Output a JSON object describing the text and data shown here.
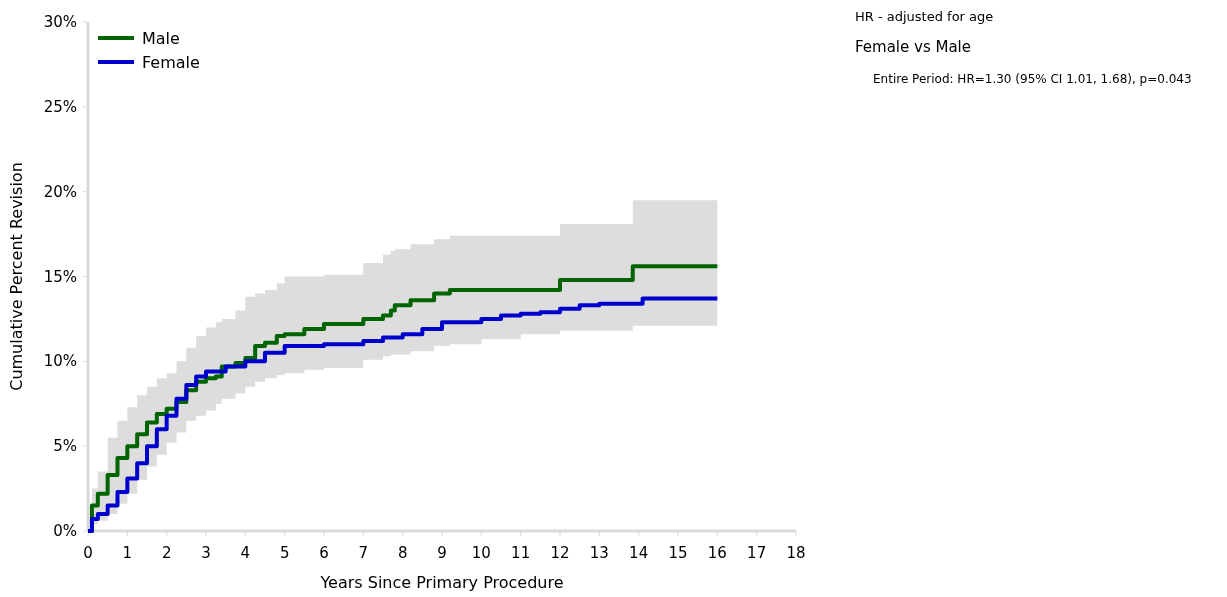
{
  "chart_data": {
    "type": "step",
    "xlabel": "Years Since Primary Procedure",
    "ylabel": "Cumulative Percent Revision",
    "xlim": [
      0,
      18
    ],
    "xticks": [
      0,
      1,
      2,
      3,
      4,
      5,
      6,
      7,
      8,
      9,
      10,
      11,
      12,
      13,
      14,
      15,
      16,
      17,
      18
    ],
    "ylim": [
      0,
      30
    ],
    "yticks": [
      {
        "value": 0,
        "label": "0%"
      },
      {
        "value": 5,
        "label": "5%"
      },
      {
        "value": 10,
        "label": "10%"
      },
      {
        "value": 15,
        "label": "15%"
      },
      {
        "value": 20,
        "label": "20%"
      },
      {
        "value": 25,
        "label": "25%"
      },
      {
        "value": 30,
        "label": "30%"
      }
    ],
    "grid": false,
    "legend": "top left",
    "marker": "none",
    "line_style": "solid",
    "annotations": [
      "HR - adjusted for age",
      "Female vs Male",
      "Entire Period: HR=1.30 (95% CI 1.01, 1.68), p=0.043"
    ],
    "series": [
      {
        "name": "Male",
        "color": "#006400",
        "x": [
          0,
          0.1,
          0.25,
          0.5,
          0.75,
          1,
          1.25,
          1.5,
          1.75,
          2,
          2.25,
          2.5,
          2.75,
          3,
          3.25,
          3.4,
          3.75,
          4,
          4.25,
          4.5,
          4.8,
          5,
          5.5,
          6,
          7,
          7.5,
          7.7,
          7.8,
          8.2,
          8.8,
          9.2,
          10,
          11,
          12,
          13.85,
          16
        ],
        "values": [
          0,
          1.5,
          2.2,
          3.3,
          4.3,
          5.0,
          5.7,
          6.4,
          6.9,
          7.2,
          7.6,
          8.3,
          8.8,
          9.0,
          9.1,
          9.7,
          9.9,
          10.2,
          10.9,
          11.1,
          11.5,
          11.6,
          11.9,
          12.2,
          12.5,
          12.7,
          13.0,
          13.3,
          13.6,
          14.0,
          14.2,
          14.2,
          14.2,
          14.8,
          15.6,
          15.6
        ],
        "upper": [
          0,
          2.5,
          3.5,
          5.5,
          6.5,
          7.3,
          8.0,
          8.5,
          9.0,
          9.3,
          10.0,
          10.8,
          11.5,
          12.0,
          12.3,
          12.5,
          13.0,
          13.8,
          14.0,
          14.2,
          14.6,
          15.0,
          15.0,
          15.1,
          15.8,
          16.3,
          16.5,
          16.6,
          16.9,
          17.2,
          17.4,
          17.4,
          17.4,
          18.1,
          19.5,
          19.5
        ],
        "lower": [
          0,
          0.4,
          0.6,
          1.0,
          1.6,
          2.2,
          3.0,
          3.8,
          4.5,
          5.2,
          5.8,
          6.5,
          6.8,
          7.1,
          7.5,
          7.8,
          8.1,
          8.5,
          8.8,
          9.0,
          9.2,
          9.3,
          9.5,
          9.6,
          10.1,
          10.3,
          10.4,
          10.4,
          10.6,
          10.9,
          11.0,
          11.3,
          11.6,
          11.8,
          12.1,
          12.1
        ]
      },
      {
        "name": "Female",
        "color": "#0000cd",
        "x": [
          0,
          0.1,
          0.25,
          0.5,
          0.75,
          1,
          1.25,
          1.5,
          1.75,
          2,
          2.25,
          2.5,
          2.75,
          3,
          3.5,
          4,
          4.5,
          5,
          6,
          7,
          7.5,
          8,
          8.5,
          9,
          10,
          10.5,
          11,
          11.5,
          12,
          12.5,
          13,
          14.1,
          16
        ],
        "values": [
          0,
          0.7,
          1.0,
          1.5,
          2.3,
          3.1,
          4.0,
          5.0,
          6.0,
          6.8,
          7.8,
          8.6,
          9.1,
          9.4,
          9.7,
          10.0,
          10.5,
          10.9,
          11.0,
          11.2,
          11.4,
          11.6,
          11.9,
          12.3,
          12.5,
          12.7,
          12.8,
          12.9,
          13.1,
          13.3,
          13.4,
          13.7,
          13.7
        ]
      }
    ]
  }
}
